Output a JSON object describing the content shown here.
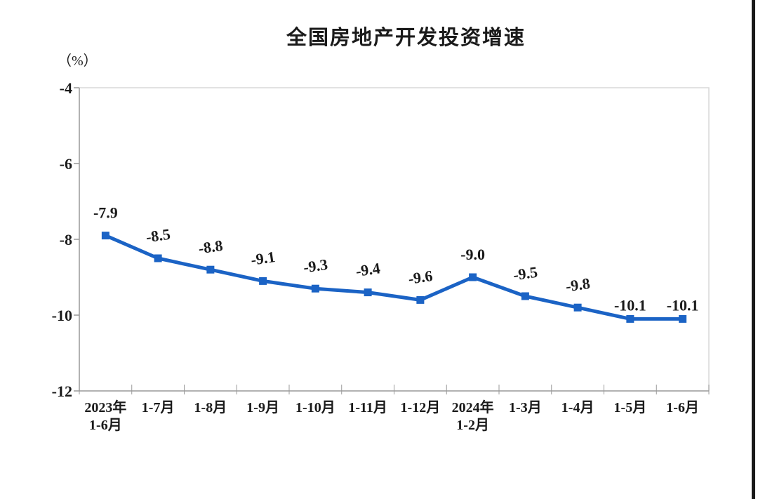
{
  "page": {
    "background": "#ffffff",
    "edge_rule_color": "#1a1a1a"
  },
  "chart_data": {
    "type": "line",
    "title": "全国房地产开发投资增速",
    "ylabel": "（%）",
    "xlabel": "",
    "categories": [
      "2023年\n1-6月",
      "1-7月",
      "1-8月",
      "1-9月",
      "1-10月",
      "1-11月",
      "1-12月",
      "2024年\n1-2月",
      "1-3月",
      "1-4月",
      "1-5月",
      "1-6月"
    ],
    "values": [
      -7.9,
      -8.5,
      -8.8,
      -9.1,
      -9.3,
      -9.4,
      -9.6,
      -9.0,
      -9.5,
      -9.8,
      -10.1,
      -10.1
    ],
    "data_labels": [
      "-7.9",
      "-8.5",
      "-8.8",
      "-9.1",
      "-9.3",
      "-9.4",
      "-9.6",
      "-9.0",
      "-9.5",
      "-9.8",
      "-10.1",
      "-10.1"
    ],
    "ylim": [
      -12,
      -4
    ],
    "yticks": [
      -4,
      -6,
      -8,
      -10,
      -12
    ],
    "grid": false,
    "legend": "none",
    "tilted_label_indices": [
      1,
      2,
      3,
      4,
      5,
      6,
      8,
      9
    ],
    "label_tilt_deg": -8,
    "colors": {
      "line": "#1b63c5",
      "marker": "#1b63c5",
      "axis": "#999999",
      "plot_border": "#d9d9d9",
      "text": "#1a1a1a"
    }
  }
}
